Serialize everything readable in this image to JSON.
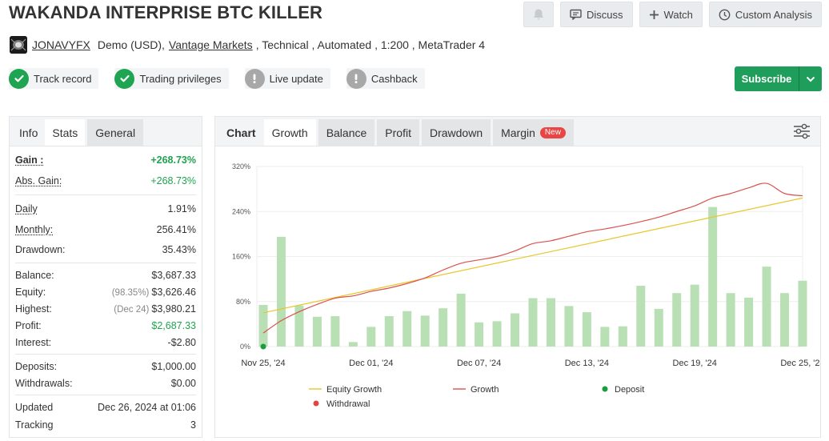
{
  "header": {
    "title": "WAKANDA INTERPRISE BTC KILLER",
    "actions": {
      "discuss": "Discuss",
      "watch": "Watch",
      "custom_analysis": "Custom Analysis"
    }
  },
  "account": {
    "user": "JONAVYFX",
    "type_text": "Demo (USD),",
    "broker": "Vantage Markets",
    "details": ", Technical , Automated , 1:200 , MetaTrader 4"
  },
  "badges": [
    {
      "label": "Track record",
      "status": "ok"
    },
    {
      "label": "Trading privileges",
      "status": "ok"
    },
    {
      "label": "Live update",
      "status": "warn"
    },
    {
      "label": "Cashback",
      "status": "warn"
    }
  ],
  "subscribe_label": "Subscribe",
  "left_tabs": [
    "Info",
    "Stats",
    "General"
  ],
  "stats": {
    "gain_label": "Gain :",
    "gain_value": "+268.73%",
    "abs_gain_label": "Abs. Gain:",
    "abs_gain_value": "+268.73%",
    "daily_label": "Daily",
    "daily_value": "1.91%",
    "monthly_label": "Monthly:",
    "monthly_value": "256.41%",
    "drawdown_label": "Drawdown:",
    "drawdown_value": "35.43%",
    "balance_label": "Balance:",
    "balance_value": "$3,687.33",
    "equity_label": "Equity:",
    "equity_note": "(98.35%)",
    "equity_value": "$3,626.46",
    "highest_label": "Highest:",
    "highest_note": "(Dec 24)",
    "highest_value": "$3,980.21",
    "profit_label": "Profit:",
    "profit_value": "$2,687.33",
    "interest_label": "Interest:",
    "interest_value": "-$2.80",
    "deposits_label": "Deposits:",
    "deposits_value": "$1,000.00",
    "withdrawals_label": "Withdrawals:",
    "withdrawals_value": "$0.00",
    "updated_label": "Updated",
    "updated_value": "Dec 26, 2024 at 01:06",
    "tracking_label": "Tracking",
    "tracking_value": "3"
  },
  "chart_tabs": {
    "chart": "Chart",
    "growth": "Growth",
    "balance": "Balance",
    "profit": "Profit",
    "drawdown": "Drawdown",
    "margin": "Margin",
    "new_badge": "New"
  },
  "colors": {
    "green": "#1fa451",
    "subscribe": "#1e9e5a",
    "bar": "#b9dfb5",
    "growth_line": "#d9534f",
    "equity_line": "#e8c629",
    "deposit": "#1a9e3c",
    "withdrawal": "#e04545"
  },
  "chart_data": {
    "type": "bar",
    "y_ticks": [
      "320%",
      "240%",
      "160%",
      "80%",
      "0%"
    ],
    "ylim": [
      0,
      320
    ],
    "x_tick_labels": [
      "Nov 25, '24",
      "Dec 01, '24",
      "Dec 07, '24",
      "Dec 13, '24",
      "Dec 19, '24",
      "Dec 25, '24"
    ],
    "legend": [
      "Equity Growth",
      "Growth",
      "Deposit",
      "Withdrawal"
    ],
    "bars": {
      "name": "Daily",
      "x": [
        "Nov 25",
        "Nov 26",
        "Nov 27",
        "Nov 28",
        "Nov 29",
        "Nov 30",
        "Dec 01",
        "Dec 02",
        "Dec 03",
        "Dec 04",
        "Dec 05",
        "Dec 06",
        "Dec 07",
        "Dec 08",
        "Dec 09",
        "Dec 10",
        "Dec 11",
        "Dec 12",
        "Dec 13",
        "Dec 14",
        "Dec 15",
        "Dec 16",
        "Dec 17",
        "Dec 18",
        "Dec 19",
        "Dec 20",
        "Dec 21",
        "Dec 22",
        "Dec 23",
        "Dec 24",
        "Dec 25"
      ],
      "values": [
        74,
        195,
        73,
        53,
        54,
        8,
        35,
        54,
        63,
        55,
        68,
        94,
        43,
        45,
        59,
        86,
        86,
        72,
        61,
        35,
        36,
        108,
        67,
        95,
        110,
        248,
        95,
        87,
        142,
        95,
        117
      ]
    },
    "growth": {
      "name": "Growth",
      "x": [
        "Nov 25",
        "Nov 26",
        "Nov 27",
        "Nov 28",
        "Nov 29",
        "Nov 30",
        "Dec 01",
        "Dec 02",
        "Dec 03",
        "Dec 04",
        "Dec 05",
        "Dec 06",
        "Dec 07",
        "Dec 08",
        "Dec 09",
        "Dec 10",
        "Dec 11",
        "Dec 12",
        "Dec 13",
        "Dec 14",
        "Dec 15",
        "Dec 16",
        "Dec 17",
        "Dec 18",
        "Dec 19",
        "Dec 20",
        "Dec 21",
        "Dec 22",
        "Dec 23",
        "Dec 24",
        "Dec 25"
      ],
      "values": [
        24,
        46,
        62,
        75,
        86,
        90,
        98,
        104,
        112,
        122,
        136,
        148,
        154,
        160,
        170,
        183,
        188,
        196,
        204,
        209,
        215,
        222,
        230,
        240,
        250,
        264,
        272,
        282,
        290,
        272,
        268
      ]
    },
    "equity": {
      "name": "Equity Growth",
      "x_start": "Nov 25",
      "x_end": "Dec 25",
      "y_start": 60,
      "y_end": 264
    },
    "deposits": [
      {
        "x": "Nov 25",
        "y": 0
      }
    ]
  }
}
